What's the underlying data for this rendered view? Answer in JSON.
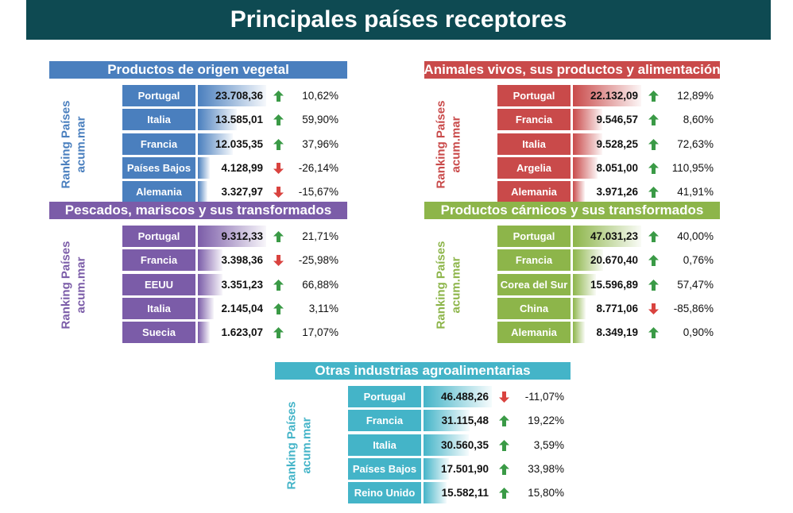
{
  "page_title": "Principales países receptores",
  "colors": {
    "header": "#0e4a52",
    "vegetal": "#4a7fbe",
    "animales": "#c94a4a",
    "pescados": "#7b5ca8",
    "carnicos": "#8db54a",
    "otras": "#44b4c8",
    "arrow_up": "#3a9a46",
    "arrow_down": "#d9433f"
  },
  "icons": {
    "up": "arrow-up-icon",
    "down": "arrow-down-icon"
  },
  "chart_data": [
    {
      "type": "table",
      "title": "Productos de origen vegetal",
      "side_label": [
        "Ranking Países",
        "acum.mar"
      ],
      "color": "#4a7fbe",
      "rows": [
        {
          "country": "Portugal",
          "value": 23708.36,
          "value_text": "23.708,36",
          "change_text": "10,62%",
          "direction": "up"
        },
        {
          "country": "Italia",
          "value": 13585.01,
          "value_text": "13.585,01",
          "change_text": "59,90%",
          "direction": "up"
        },
        {
          "country": "Francia",
          "value": 12035.35,
          "value_text": "12.035,35",
          "change_text": "37,96%",
          "direction": "up"
        },
        {
          "country": "Países Bajos",
          "value": 4128.99,
          "value_text": "4.128,99",
          "change_text": "-26,14%",
          "direction": "down"
        },
        {
          "country": "Alemania",
          "value": 3327.97,
          "value_text": "3.327,97",
          "change_text": "-15,67%",
          "direction": "down"
        }
      ]
    },
    {
      "type": "table",
      "title": "Animales vivos, sus productos y alimentación",
      "side_label": [
        "Ranking Países",
        "acum.mar"
      ],
      "color": "#c94a4a",
      "rows": [
        {
          "country": "Portugal",
          "value": 22132.09,
          "value_text": "22.132,09",
          "change_text": "12,89%",
          "direction": "up"
        },
        {
          "country": "Francia",
          "value": 9546.57,
          "value_text": "9.546,57",
          "change_text": "8,60%",
          "direction": "up"
        },
        {
          "country": "Italia",
          "value": 9528.25,
          "value_text": "9.528,25",
          "change_text": "72,63%",
          "direction": "up"
        },
        {
          "country": "Argelia",
          "value": 8051.0,
          "value_text": "8.051,00",
          "change_text": "110,95%",
          "direction": "up"
        },
        {
          "country": "Alemania",
          "value": 3971.26,
          "value_text": "3.971,26",
          "change_text": "41,91%",
          "direction": "up"
        }
      ]
    },
    {
      "type": "table",
      "title": "Pescados, mariscos y sus transformados",
      "side_label": [
        "Ranking Países",
        "acum.mar"
      ],
      "color": "#7b5ca8",
      "rows": [
        {
          "country": "Portugal",
          "value": 9312.33,
          "value_text": "9.312,33",
          "change_text": "21,71%",
          "direction": "up"
        },
        {
          "country": "Francia",
          "value": 3398.36,
          "value_text": "3.398,36",
          "change_text": "-25,98%",
          "direction": "down"
        },
        {
          "country": "EEUU",
          "value": 3351.23,
          "value_text": "3.351,23",
          "change_text": "66,88%",
          "direction": "up"
        },
        {
          "country": "Italia",
          "value": 2145.04,
          "value_text": "2.145,04",
          "change_text": "3,11%",
          "direction": "up"
        },
        {
          "country": "Suecia",
          "value": 1623.07,
          "value_text": "1.623,07",
          "change_text": "17,07%",
          "direction": "up"
        }
      ]
    },
    {
      "type": "table",
      "title": "Productos cárnicos y sus transformados",
      "side_label": [
        "Ranking Países",
        "acum.mar"
      ],
      "color": "#8db54a",
      "rows": [
        {
          "country": "Portugal",
          "value": 47031.23,
          "value_text": "47.031,23",
          "change_text": "40,00%",
          "direction": "up"
        },
        {
          "country": "Francia",
          "value": 20670.4,
          "value_text": "20.670,40",
          "change_text": "0,76%",
          "direction": "up"
        },
        {
          "country": "Corea del Sur",
          "value": 15596.89,
          "value_text": "15.596,89",
          "change_text": "57,47%",
          "direction": "up"
        },
        {
          "country": "China",
          "value": 8771.06,
          "value_text": "8.771,06",
          "change_text": "-85,86%",
          "direction": "down"
        },
        {
          "country": "Alemania",
          "value": 8349.19,
          "value_text": "8.349,19",
          "change_text": "0,90%",
          "direction": "up"
        }
      ]
    },
    {
      "type": "table",
      "title": "Otras industrias agroalimentarias",
      "side_label": [
        "Ranking Países",
        "acum.mar"
      ],
      "color": "#44b4c8",
      "rows": [
        {
          "country": "Portugal",
          "value": 46488.26,
          "value_text": "46.488,26",
          "change_text": "-11,07%",
          "direction": "down"
        },
        {
          "country": "Francia",
          "value": 31115.48,
          "value_text": "31.115,48",
          "change_text": "19,22%",
          "direction": "up"
        },
        {
          "country": "Italia",
          "value": 30560.35,
          "value_text": "30.560,35",
          "change_text": "3,59%",
          "direction": "up"
        },
        {
          "country": "Países Bajos",
          "value": 17501.9,
          "value_text": "17.501,90",
          "change_text": "33,98%",
          "direction": "up"
        },
        {
          "country": "Reino Unido",
          "value": 15582.11,
          "value_text": "15.582,11",
          "change_text": "15,80%",
          "direction": "up"
        }
      ]
    }
  ]
}
